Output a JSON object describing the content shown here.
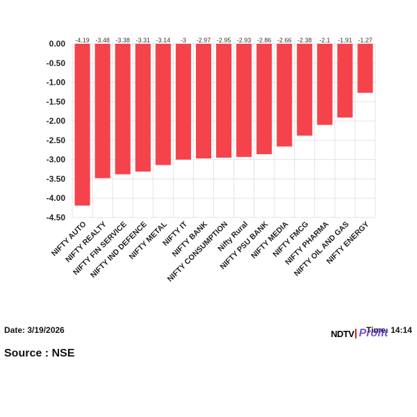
{
  "chart_data": {
    "type": "bar",
    "categories": [
      "NIFTY AUTO",
      "NIFTY REALTY",
      "NIFTY FIN SERVICE",
      "NIFTY IND DEFENCE",
      "NIFTY METAL",
      "NIFTY IT",
      "NIFTY BANK",
      "NIFTY CONSUMPTION",
      "Nifty Rural",
      "NIFTY PSU BANK",
      "NIFTY MEDIA",
      "NIFTY FMCG",
      "NIFTY PHARMA",
      "NIFTY OIL AND GAS",
      "NIFTY ENERGY"
    ],
    "values": [
      -4.19,
      -3.48,
      -3.38,
      -3.31,
      -3.14,
      -3,
      -2.97,
      -2.95,
      -2.93,
      -2.86,
      -2.66,
      -2.38,
      -2.1,
      -1.91,
      -1.27
    ],
    "data_labels": [
      "-4.19",
      "-3.48",
      "-3.38",
      "-3.31",
      "-3.14",
      "-3",
      "-2.97",
      "-2.95",
      "-2.93",
      "-2.86",
      "-2.66",
      "-2.38",
      "-2.1",
      "-1.91",
      "-1.27"
    ],
    "y_ticks": [
      "0.00",
      "-0.50",
      "-1.00",
      "-1.50",
      "-2.00",
      "-2.50",
      "-3.00",
      "-3.50",
      "-4.00",
      "-4.50"
    ],
    "ylim": [
      -4.5,
      0
    ],
    "grid": true,
    "bar_color": "#f5434b",
    "title": "",
    "xlabel": "",
    "ylabel": ""
  },
  "footer": {
    "date_label": "Date: 3/19/2026",
    "time_label": "Time: 14:14",
    "source_label": "Source : NSE",
    "logo_text_primary": "NDTV",
    "logo_text_secondary": "Profit"
  }
}
